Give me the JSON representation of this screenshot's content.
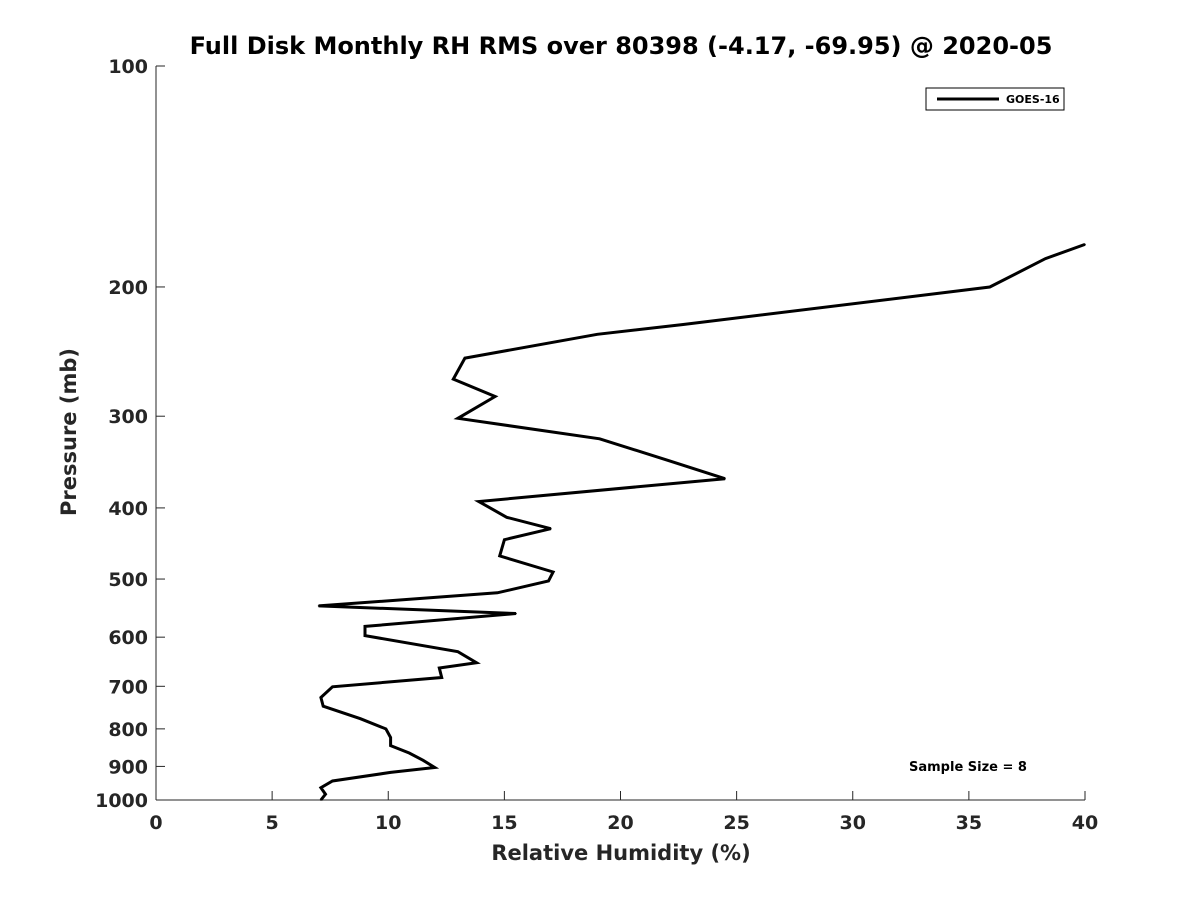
{
  "chart_data": {
    "type": "line",
    "title": "Full Disk Monthly RH RMS over 80398 (-4.17, -69.95) @ 2020-05",
    "xlabel": "Relative Humidity (%)",
    "ylabel": "Pressure (mb)",
    "xlim": [
      0,
      40
    ],
    "ylim": [
      100,
      1000
    ],
    "y_scale": "log",
    "y_reversed": true,
    "grid": false,
    "legend_position": "top-right",
    "x_ticks": [
      0,
      5,
      10,
      15,
      20,
      25,
      30,
      35,
      40
    ],
    "y_ticks": [
      100,
      200,
      300,
      400,
      500,
      600,
      700,
      800,
      900,
      1000
    ],
    "annotation": "Sample Size = 8",
    "series": [
      {
        "name": "GOES-16",
        "color": "#000000",
        "points": [
          [
            40.0,
            175
          ],
          [
            38.3,
            183
          ],
          [
            35.9,
            200
          ],
          [
            22.7,
            225
          ],
          [
            19.0,
            232
          ],
          [
            13.3,
            250
          ],
          [
            12.8,
            267
          ],
          [
            14.6,
            282
          ],
          [
            13.0,
            302
          ],
          [
            19.1,
            322
          ],
          [
            22.1,
            345
          ],
          [
            24.5,
            365
          ],
          [
            13.9,
            392
          ],
          [
            15.1,
            412
          ],
          [
            17.0,
            427
          ],
          [
            15.0,
            442
          ],
          [
            14.8,
            465
          ],
          [
            17.1,
            489
          ],
          [
            16.9,
            503
          ],
          [
            14.7,
            522
          ],
          [
            7.0,
            544
          ],
          [
            15.5,
            557
          ],
          [
            9.0,
            580
          ],
          [
            9.0,
            597
          ],
          [
            13.0,
            628
          ],
          [
            13.8,
            650
          ],
          [
            12.2,
            661
          ],
          [
            12.3,
            681
          ],
          [
            7.6,
            701
          ],
          [
            7.1,
            725
          ],
          [
            7.2,
            745
          ],
          [
            8.8,
            775
          ],
          [
            9.9,
            800
          ],
          [
            10.1,
            822
          ],
          [
            10.1,
            843
          ],
          [
            10.9,
            863
          ],
          [
            11.5,
            883
          ],
          [
            12.0,
            903
          ],
          [
            10.1,
            917
          ],
          [
            7.6,
            942
          ],
          [
            7.1,
            962
          ],
          [
            7.3,
            982
          ],
          [
            7.1,
            1000
          ]
        ]
      }
    ]
  }
}
